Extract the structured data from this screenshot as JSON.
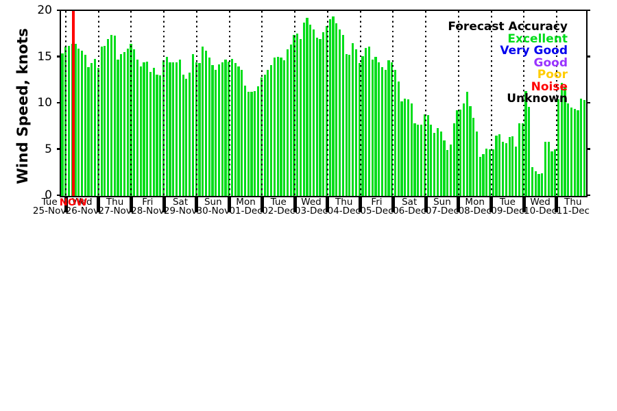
{
  "chart_data": {
    "type": "bar",
    "title": "",
    "ylabel": "Wind Speed, knots",
    "ylim": [
      0,
      20
    ],
    "yticks": [
      0,
      5,
      10,
      15,
      20
    ],
    "ytick_labels": [
      "0",
      "5",
      "10",
      "15",
      "20"
    ],
    "grid": "dotted vertical line at each day boundary",
    "bar_color": "#00dd1a",
    "days": [
      {
        "weekday": "Tue",
        "date": "25-Nov"
      },
      {
        "weekday": "Wed",
        "date": "26-Nov"
      },
      {
        "weekday": "Thu",
        "date": "27-Nov"
      },
      {
        "weekday": "Fri",
        "date": "28-Nov"
      },
      {
        "weekday": "Sat",
        "date": "29-Nov"
      },
      {
        "weekday": "Sun",
        "date": "30-Nov"
      },
      {
        "weekday": "Mon",
        "date": "01-Dec"
      },
      {
        "weekday": "Tue",
        "date": "02-Dec"
      },
      {
        "weekday": "Wed",
        "date": "03-Dec"
      },
      {
        "weekday": "Thu",
        "date": "04-Dec"
      },
      {
        "weekday": "Fri",
        "date": "05-Dec"
      },
      {
        "weekday": "Sat",
        "date": "06-Dec"
      },
      {
        "weekday": "Sun",
        "date": "07-Dec"
      },
      {
        "weekday": "Mon",
        "date": "08-Dec"
      },
      {
        "weekday": "Tue",
        "date": "09-Dec"
      },
      {
        "weekday": "Wed",
        "date": "10-Dec"
      },
      {
        "weekday": "Thu",
        "date": "11-Dec"
      }
    ],
    "samples_per_day": 10,
    "values_knots": [
      15.4,
      16.1,
      16.2,
      16.4,
      16.4,
      15.9,
      15.7,
      15.2,
      13.9,
      14.3,
      14.8,
      13.8,
      16.1,
      16.2,
      16.9,
      17.4,
      17.3,
      14.7,
      15.3,
      15.5,
      15.9,
      16.4,
      15.8,
      14.7,
      14.0,
      14.4,
      14.5,
      13.4,
      13.8,
      13.1,
      13.0,
      14.6,
      15.0,
      14.4,
      14.4,
      14.4,
      14.7,
      13.1,
      12.6,
      13.3,
      15.3,
      14.4,
      14.3,
      16.1,
      15.7,
      14.9,
      14.1,
      13.6,
      14.2,
      14.4,
      14.7,
      14.5,
      14.8,
      14.3,
      14.0,
      13.6,
      11.9,
      11.2,
      11.2,
      11.3,
      11.8,
      12.8,
      13.1,
      13.6,
      14.1,
      14.9,
      15.0,
      14.9,
      14.6,
      15.8,
      16.3,
      17.4,
      17.5,
      16.9,
      18.7,
      19.2,
      18.5,
      18.0,
      17.1,
      16.9,
      17.7,
      18.3,
      19.1,
      19.4,
      18.6,
      18.0,
      17.4,
      15.3,
      15.2,
      16.5,
      15.8,
      14.3,
      15.1,
      16.0,
      16.1,
      14.7,
      15.0,
      14.4,
      13.9,
      13.6,
      14.6,
      14.4,
      13.6,
      12.3,
      10.2,
      10.5,
      10.4,
      10.0,
      7.8,
      7.7,
      7.7,
      8.8,
      8.7,
      7.7,
      6.8,
      7.3,
      6.9,
      6.0,
      4.9,
      5.5,
      7.8,
      9.2,
      9.3,
      10.0,
      11.2,
      9.7,
      8.4,
      6.9,
      4.2,
      4.5,
      5.1,
      5.0,
      5.0,
      6.5,
      6.6,
      5.8,
      5.7,
      6.3,
      6.4,
      5.3,
      7.8,
      7.8,
      11.3,
      9.6,
      3.1,
      2.6,
      2.3,
      2.4,
      5.8,
      5.8,
      4.8,
      5.0,
      10.4,
      12.2,
      11.7,
      10.0,
      9.5,
      9.4,
      9.2,
      10.5,
      10.3
    ],
    "now_marker": {
      "label": "NOW",
      "color": "#ff0000",
      "bar_index": 3
    },
    "legend_position": "upper right",
    "legend": {
      "title": "Forecast Accuracy",
      "title_color": "#000000",
      "items": [
        {
          "label": "Excellent",
          "color": "#00dd1a"
        },
        {
          "label": "Very Good",
          "color": "#0000ee"
        },
        {
          "label": "Good",
          "color": "#9933ff"
        },
        {
          "label": "Poor",
          "color": "#ffcc00"
        },
        {
          "label": "Noise",
          "color": "#ff0000"
        },
        {
          "label": "Unknown",
          "color": "#000000"
        }
      ]
    }
  }
}
